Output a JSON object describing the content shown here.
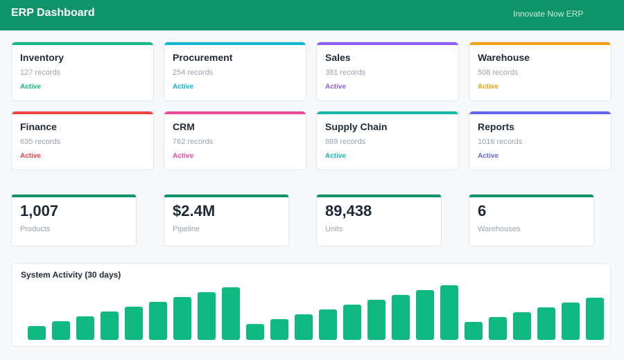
{
  "header": {
    "title": "ERP Dashboard",
    "brand": "Innovate Now ERP"
  },
  "modules": [
    {
      "name": "Inventory",
      "records": "127 records",
      "status": "Active",
      "color": "#10b981"
    },
    {
      "name": "Procurement",
      "records": "254 records",
      "status": "Active",
      "color": "#06b6d4"
    },
    {
      "name": "Sales",
      "records": "381 records",
      "status": "Active",
      "color": "#8b5cf6"
    },
    {
      "name": "Warehouse",
      "records": "508 records",
      "status": "Active",
      "color": "#f59e0b"
    },
    {
      "name": "Finance",
      "records": "635 records",
      "status": "Active",
      "color": "#ef4444"
    },
    {
      "name": "CRM",
      "records": "762 records",
      "status": "Active",
      "color": "#ec4899"
    },
    {
      "name": "Supply Chain",
      "records": "889 records",
      "status": "Active",
      "color": "#14b8a6"
    },
    {
      "name": "Reports",
      "records": "1016 records",
      "status": "Active",
      "color": "#6366f1"
    }
  ],
  "stats": [
    {
      "value": "1,007",
      "label": "Products"
    },
    {
      "value": "$2.4M",
      "label": "Pipeline"
    },
    {
      "value": "89,438",
      "label": "Units"
    },
    {
      "value": "6",
      "label": "Warehouses"
    }
  ],
  "colors": {
    "primary": "#0e9468",
    "bar": "#10b981"
  },
  "chart_data": {
    "type": "bar",
    "title": "System Activity (30 days)",
    "values": [
      20,
      27,
      34,
      41,
      48,
      55,
      62,
      69,
      76,
      23,
      30,
      37,
      44,
      51,
      58,
      65,
      72,
      79,
      26,
      33,
      40,
      47,
      54,
      61
    ],
    "ylim": [
      0,
      80
    ],
    "grid": false,
    "legend": "none"
  }
}
